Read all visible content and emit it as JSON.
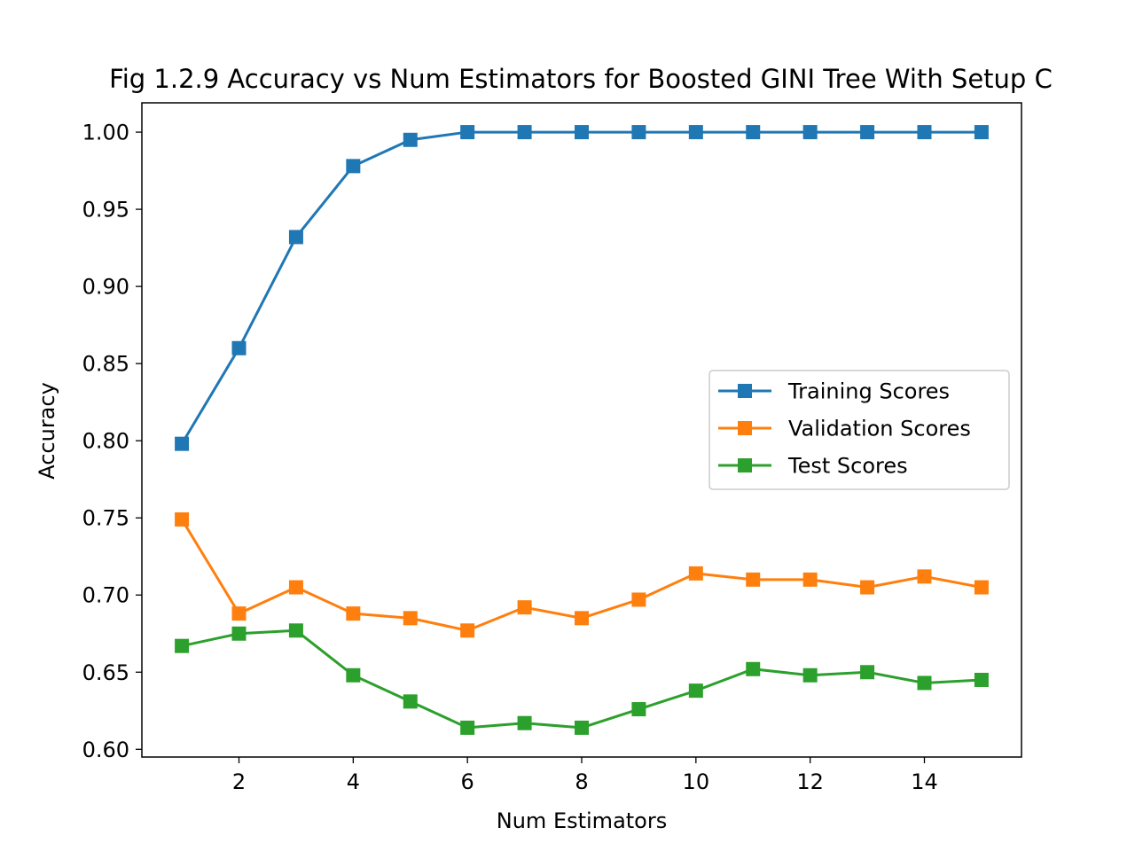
{
  "chart_data": {
    "type": "line",
    "title": "Fig 1.2.9 Accuracy vs Num Estimators for Boosted GINI Tree With Setup C",
    "xlabel": "Num Estimators",
    "ylabel": "Accuracy",
    "x": [
      1,
      2,
      3,
      4,
      5,
      6,
      7,
      8,
      9,
      10,
      11,
      12,
      13,
      14,
      15
    ],
    "xlim": [
      0.3,
      15.7
    ],
    "ylim": [
      0.595,
      1.019
    ],
    "xticks": [
      2,
      4,
      6,
      8,
      10,
      12,
      14
    ],
    "xtick_labels": [
      "2",
      "4",
      "6",
      "8",
      "10",
      "12",
      "14"
    ],
    "yticks": [
      0.6,
      0.65,
      0.7,
      0.75,
      0.8,
      0.85,
      0.9,
      0.95,
      1.0
    ],
    "ytick_labels": [
      "0.60",
      "0.65",
      "0.70",
      "0.75",
      "0.80",
      "0.85",
      "0.90",
      "0.95",
      "1.00"
    ],
    "grid": false,
    "legend_position": "center-right",
    "marker": "square",
    "series": [
      {
        "name": "Training Scores",
        "color": "#1f77b4",
        "values": [
          0.798,
          0.86,
          0.932,
          0.978,
          0.995,
          1.0,
          1.0,
          1.0,
          1.0,
          1.0,
          1.0,
          1.0,
          1.0,
          1.0,
          1.0
        ]
      },
      {
        "name": "Validation Scores",
        "color": "#ff7f0e",
        "values": [
          0.749,
          0.688,
          0.705,
          0.688,
          0.685,
          0.677,
          0.692,
          0.685,
          0.697,
          0.714,
          0.71,
          0.71,
          0.705,
          0.712,
          0.705
        ]
      },
      {
        "name": "Test Scores",
        "color": "#2ca02c",
        "values": [
          0.667,
          0.675,
          0.677,
          0.648,
          0.631,
          0.614,
          0.617,
          0.614,
          0.626,
          0.638,
          0.652,
          0.648,
          0.65,
          0.643,
          0.645
        ]
      }
    ]
  }
}
